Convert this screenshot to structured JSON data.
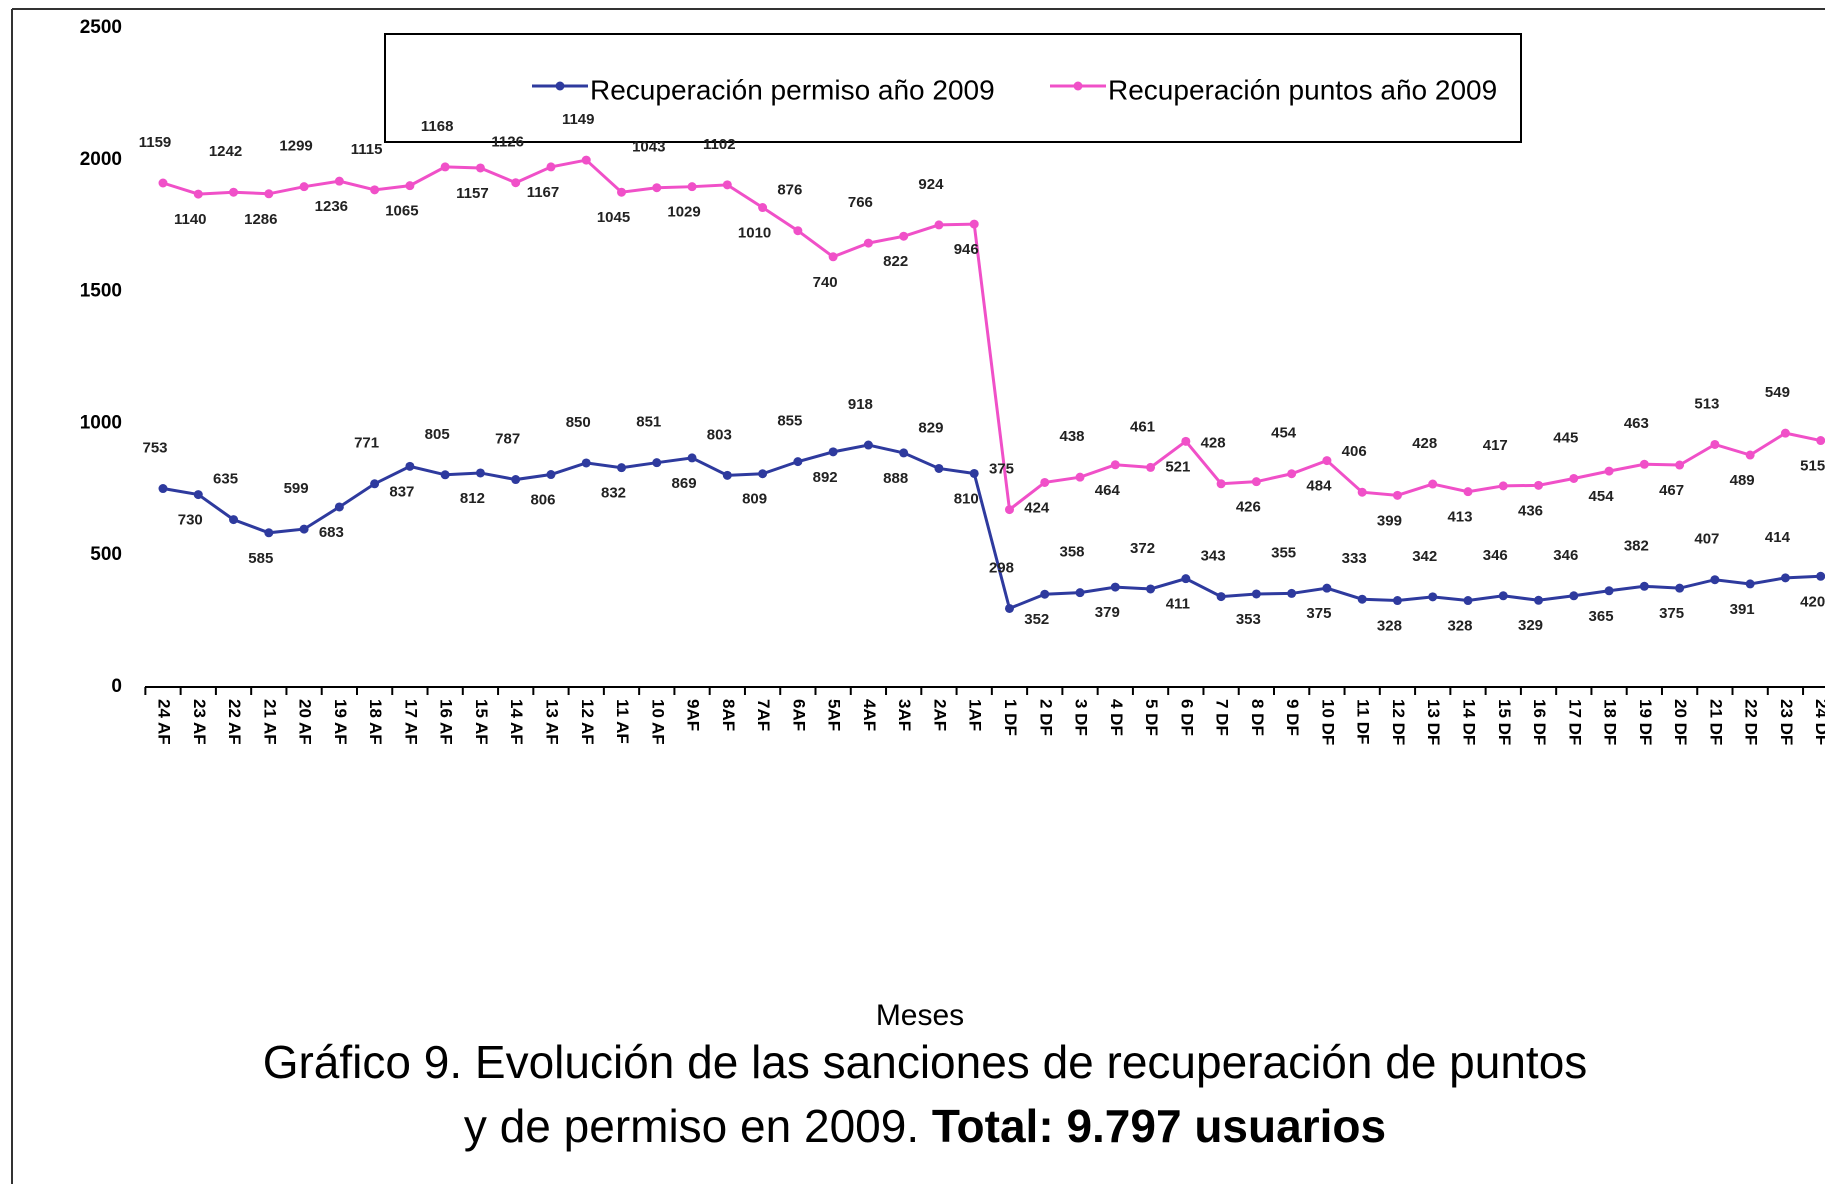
{
  "chart_data": {
    "type": "line",
    "stacked": true,
    "categories": [
      "24 AF",
      "23 AF",
      "22 AF",
      "21 AF",
      "20 AF",
      "19 AF",
      "18 AF",
      "17 AF",
      "16 AF",
      "15 AF",
      "14 AF",
      "13 AF",
      "12 AF",
      "11 AF",
      "10 AF",
      "9AF",
      "8AF",
      "7AF",
      "6AF",
      "5AF",
      "4AF",
      "3AF",
      "2AF",
      "1AF",
      "1 DF",
      "2 DF",
      "3 DF",
      "4 DF",
      "5 DF",
      "6 DF",
      "7 DF",
      "8 DF",
      "9 DF",
      "10 DF",
      "11 DF",
      "12 DF",
      "13 DF",
      "14 DF",
      "15 DF",
      "16 DF",
      "17 DF",
      "18 DF",
      "19 DF",
      "20 DF",
      "21 DF",
      "22 DF",
      "23 DF",
      "24 DF"
    ],
    "series": [
      {
        "name": "Recuperación permiso año 2009",
        "color": "#2e3a9e",
        "values": [
          753,
          730,
          635,
          585,
          599,
          683,
          771,
          837,
          805,
          812,
          787,
          806,
          850,
          832,
          851,
          869,
          803,
          809,
          855,
          892,
          918,
          888,
          829,
          810,
          298,
          352,
          358,
          379,
          372,
          411,
          343,
          353,
          355,
          375,
          333,
          328,
          342,
          328,
          346,
          329,
          346,
          365,
          382,
          375,
          407,
          391,
          414,
          420
        ]
      },
      {
        "name": "Recuperación puntos año 2009",
        "color": "#f050c8",
        "values": [
          1159,
          1140,
          1242,
          1286,
          1299,
          1236,
          1115,
          1065,
          1168,
          1157,
          1126,
          1167,
          1149,
          1045,
          1043,
          1029,
          1102,
          1010,
          876,
          740,
          766,
          822,
          924,
          946,
          375,
          424,
          438,
          464,
          461,
          521,
          428,
          426,
          454,
          484,
          406,
          399,
          428,
          413,
          417,
          436,
          445,
          454,
          463,
          467,
          513,
          489,
          549,
          515
        ]
      }
    ],
    "ylim": [
      0,
      2500
    ],
    "yticks": [
      0,
      500,
      1000,
      1500,
      2000,
      2500
    ],
    "x_label": "Meses",
    "caption_line1": "Gráfico 9. Evolución de las sanciones de recuperación de puntos",
    "caption_line2": "y de permiso en 2009.",
    "caption_bold": "Total: 9.797 usuarios"
  }
}
